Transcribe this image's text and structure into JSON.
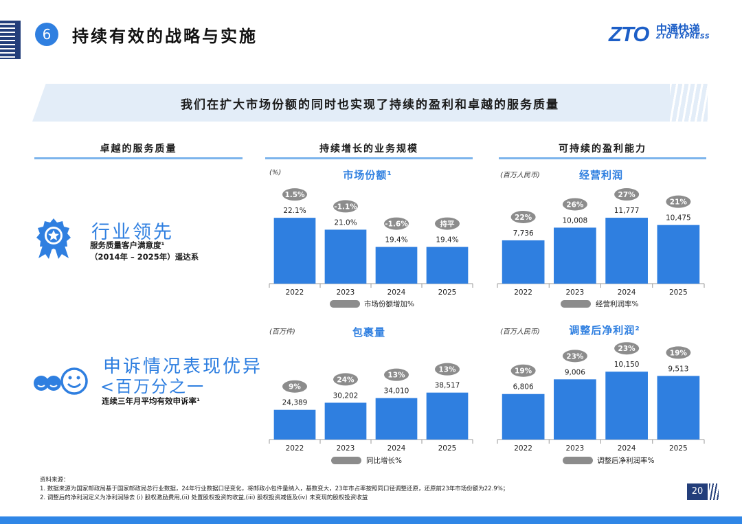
{
  "header": {
    "section_number": "6",
    "title": "持续有效的战略与实施",
    "logo_mark": "ZTO",
    "logo_cn": "中通快递",
    "logo_en": "ZTO EXPRESS"
  },
  "banner": {
    "text": "我们在扩大市场份额的同时也实现了持续的盈利和卓越的服务质量"
  },
  "columns": {
    "left": "卓越的服务质量",
    "middle": "持续增长的业务规模",
    "right": "可持续的盈利能力"
  },
  "highlights": [
    {
      "headline": "行业领先",
      "line1": "服务质量客户满意度¹",
      "line2": "（2014年 – 2025年）遥达系",
      "icon": "award-ribbon-icon"
    },
    {
      "headline": "申诉情况表现优异",
      "line1": "<百万分之一",
      "line2": "连续三年月平均有效申诉率¹",
      "icon": "smile-faces-icon"
    }
  ],
  "colors": {
    "bar": "#2f7fe0",
    "badge": "#8c8c8c",
    "accent": "#2f7fe0",
    "navy": "#233e7a"
  },
  "chart_data": [
    {
      "type": "bar",
      "title": "市场份额¹",
      "unit": "(%)",
      "categories": [
        "2022",
        "2023",
        "2024",
        "2025"
      ],
      "values": [
        22.1,
        21.0,
        19.4,
        19.4
      ],
      "value_labels": [
        "22.1%",
        "21.0%",
        "19.4%",
        "19.4%"
      ],
      "badges": [
        "1.5%",
        "-1.1%",
        "-1.6%",
        "持平"
      ],
      "legend": "市场份额增加%",
      "ylim": [
        16,
        23
      ]
    },
    {
      "type": "bar",
      "title": "经营利润",
      "unit": "(百万人民币)",
      "categories": [
        "2022",
        "2023",
        "2024",
        "2025"
      ],
      "values": [
        7736,
        10008,
        11777,
        10475
      ],
      "value_labels": [
        "7,736",
        "10,008",
        "11,777",
        "10,475"
      ],
      "badges": [
        "22%",
        "26%",
        "27%",
        "21%"
      ],
      "legend": "经营利润率%",
      "ylim": [
        0,
        13500
      ]
    },
    {
      "type": "bar",
      "title": "包裹量",
      "unit": "(百万件)",
      "categories": [
        "2022",
        "2023",
        "2024",
        "2025"
      ],
      "values": [
        24389,
        30202,
        34010,
        38517
      ],
      "value_labels": [
        "24,389",
        "30,202",
        "34,010",
        "38,517"
      ],
      "badges": [
        "9%",
        "24%",
        "13%",
        "13%"
      ],
      "legend": "同比增长%",
      "ylim": [
        0,
        62000
      ]
    },
    {
      "type": "bar",
      "title": "调整后净利润²",
      "unit": "(百万人民币)",
      "categories": [
        "2022",
        "2023",
        "2024",
        "2025"
      ],
      "values": [
        6806,
        9006,
        10150,
        9513
      ],
      "value_labels": [
        "6,806",
        "9,006",
        "10,150",
        "9,513"
      ],
      "badges": [
        "19%",
        "23%",
        "23%",
        "19%"
      ],
      "legend": "调整后净利润率%",
      "ylim": [
        0,
        11300
      ]
    }
  ],
  "footer": {
    "source_title": "资料来源：",
    "note1": "1. 数据来源为国家邮政局基于国家邮政局总行业数据，24年行业数据口径变化，将邮政小包件量纳入，基数变大，23年市占率按照同口径调整还原，还原前23年市场份额为22.9%；",
    "note2": "2. 调整后的净利润定义为净利润除去 (i) 股权激励费用,(ii) 处置股权投资的收益,(iii) 股权投资减值及(iv) 未变现的股权投资收益",
    "page": "20"
  }
}
